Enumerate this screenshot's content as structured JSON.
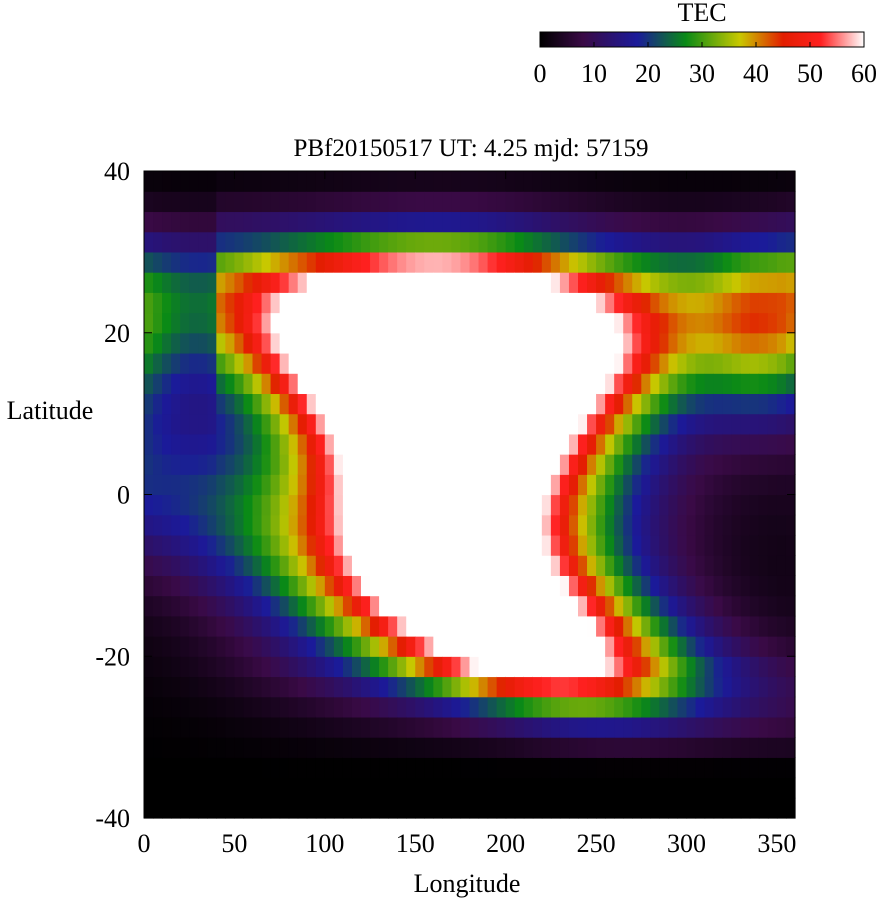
{
  "chart_data": {
    "type": "heatmap",
    "title": "PBf20150517  UT: 4.25  mjd: 57159",
    "xlabel": "Longitude",
    "ylabel": "Latitude",
    "xlim": [
      0,
      360
    ],
    "ylim": [
      -40,
      40
    ],
    "xticks": [
      "0",
      "50",
      "100",
      "150",
      "200",
      "250",
      "300",
      "350"
    ],
    "xtick_values": [
      0,
      50,
      100,
      150,
      200,
      250,
      300,
      350
    ],
    "yticks": [
      "40",
      "20",
      "0",
      "-20",
      "-40"
    ],
    "ytick_values": [
      40,
      20,
      0,
      -20,
      -40
    ],
    "grid": false,
    "colorbar": {
      "label": "TEC",
      "range": [
        0,
        60
      ],
      "ticks": [
        "0",
        "10",
        "20",
        "30",
        "40",
        "50",
        "60"
      ],
      "tick_values": [
        0,
        10,
        20,
        30,
        40,
        50,
        60
      ],
      "placement": "top-right",
      "colors": [
        "#000000",
        "#3a0a46",
        "#1b1a9a",
        "#0a8a16",
        "#c8c800",
        "#e21e00",
        "#ff2020",
        "#ffffff"
      ],
      "color_stops": [
        0,
        8,
        18,
        27,
        37,
        45,
        52,
        60
      ]
    },
    "grid_resolution": {
      "lon_step": 5,
      "lat_step": 2.5
    },
    "note": "",
    "features": {
      "crest_north": {
        "lat": 24,
        "lon_start": 50,
        "lon_end": 330,
        "peak_lon": 150
      },
      "crest_south": {
        "lat": -10,
        "lon_start": 0,
        "lon_end": 290,
        "peak_lon": 215
      },
      "saturated_core": {
        "lon_center": 170,
        "lat_center": 6
      }
    }
  }
}
